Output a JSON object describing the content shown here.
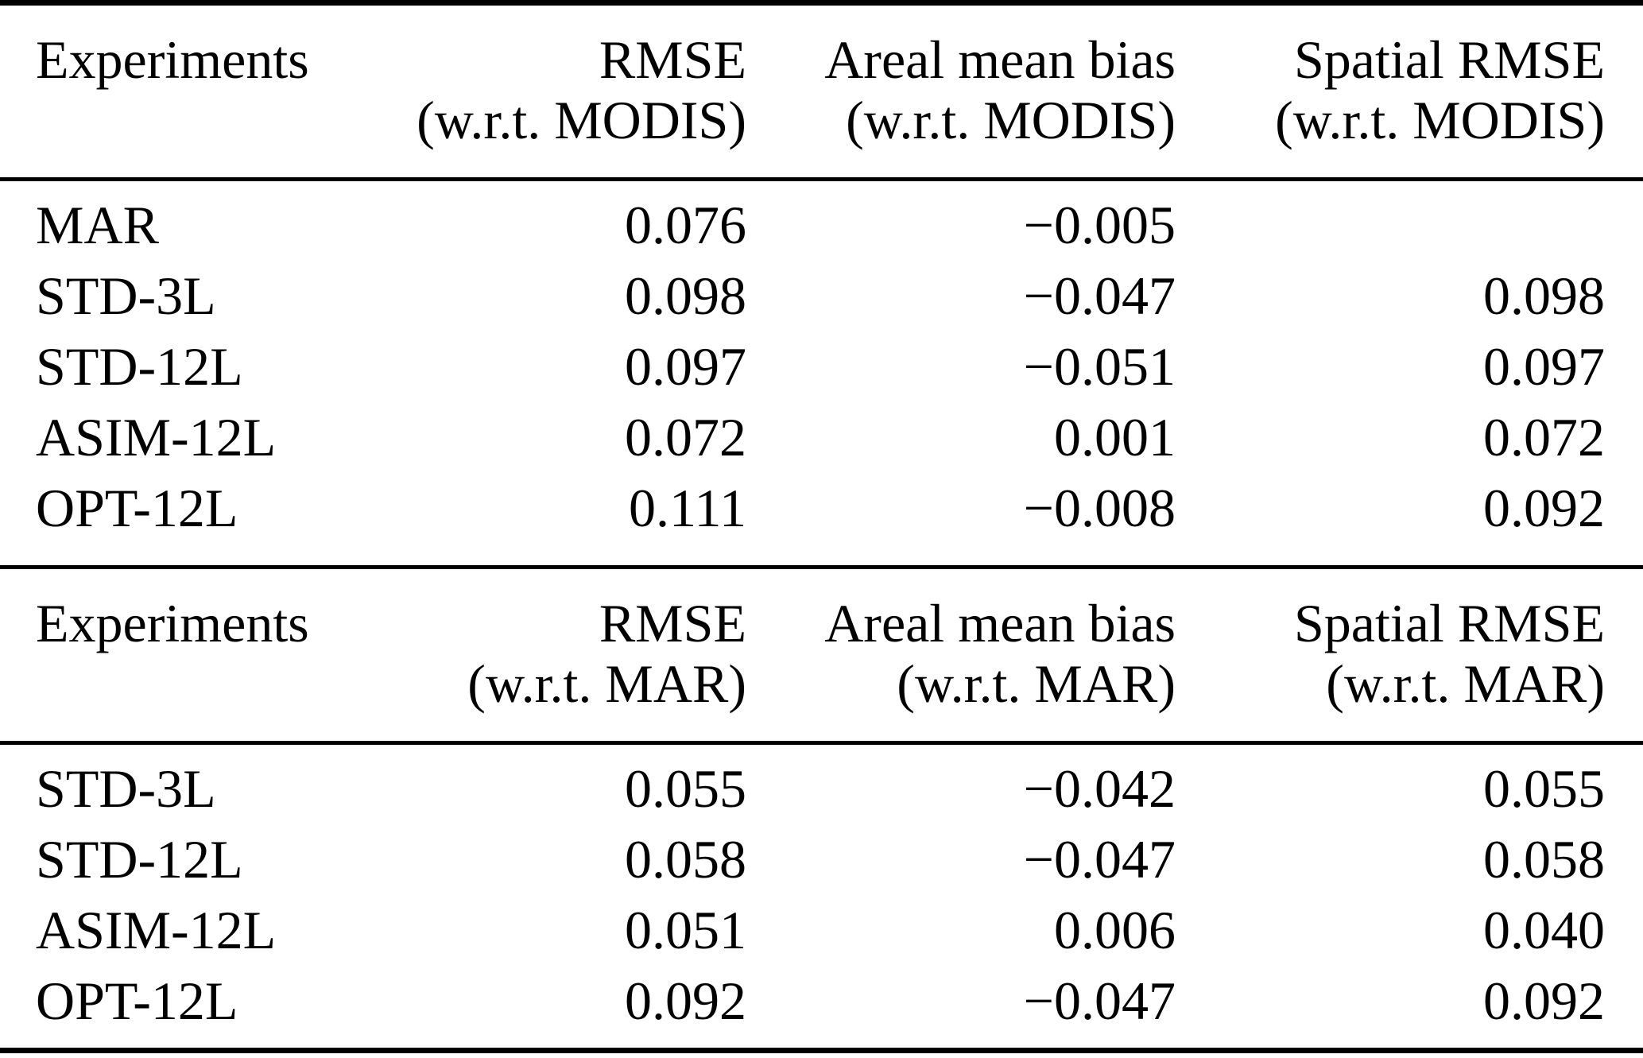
{
  "colors": {
    "text": "#000000",
    "background": "#ffffff",
    "rule": "#000000"
  },
  "tables": [
    {
      "id": "modis",
      "headers": [
        {
          "line1": "Experiments",
          "line2": ""
        },
        {
          "line1": "RMSE",
          "line2": "(w.r.t. MODIS)"
        },
        {
          "line1": "Areal mean bias",
          "line2": "(w.r.t. MODIS)"
        },
        {
          "line1": "Spatial RMSE",
          "line2": "(w.r.t. MODIS)"
        }
      ],
      "rows": [
        {
          "experiment": "MAR",
          "rmse": "0.076",
          "areal_mean_bias": "−0.005",
          "spatial_rmse": ""
        },
        {
          "experiment": "STD-3L",
          "rmse": "0.098",
          "areal_mean_bias": "−0.047",
          "spatial_rmse": "0.098"
        },
        {
          "experiment": "STD-12L",
          "rmse": "0.097",
          "areal_mean_bias": "−0.051",
          "spatial_rmse": "0.097"
        },
        {
          "experiment": "ASIM-12L",
          "rmse": "0.072",
          "areal_mean_bias": "0.001",
          "spatial_rmse": "0.072"
        },
        {
          "experiment": "OPT-12L",
          "rmse": "0.111",
          "areal_mean_bias": "−0.008",
          "spatial_rmse": "0.092"
        }
      ]
    },
    {
      "id": "mar",
      "headers": [
        {
          "line1": "Experiments",
          "line2": ""
        },
        {
          "line1": "RMSE",
          "line2": "(w.r.t. MAR)"
        },
        {
          "line1": "Areal mean bias",
          "line2": "(w.r.t. MAR)"
        },
        {
          "line1": "Spatial RMSE",
          "line2": "(w.r.t. MAR)"
        }
      ],
      "rows": [
        {
          "experiment": "STD-3L",
          "rmse": "0.055",
          "areal_mean_bias": "−0.042",
          "spatial_rmse": "0.055"
        },
        {
          "experiment": "STD-12L",
          "rmse": "0.058",
          "areal_mean_bias": "−0.047",
          "spatial_rmse": "0.058"
        },
        {
          "experiment": "ASIM-12L",
          "rmse": "0.051",
          "areal_mean_bias": "0.006",
          "spatial_rmse": "0.040"
        },
        {
          "experiment": "OPT-12L",
          "rmse": "0.092",
          "areal_mean_bias": "−0.047",
          "spatial_rmse": "0.092"
        }
      ]
    }
  ]
}
